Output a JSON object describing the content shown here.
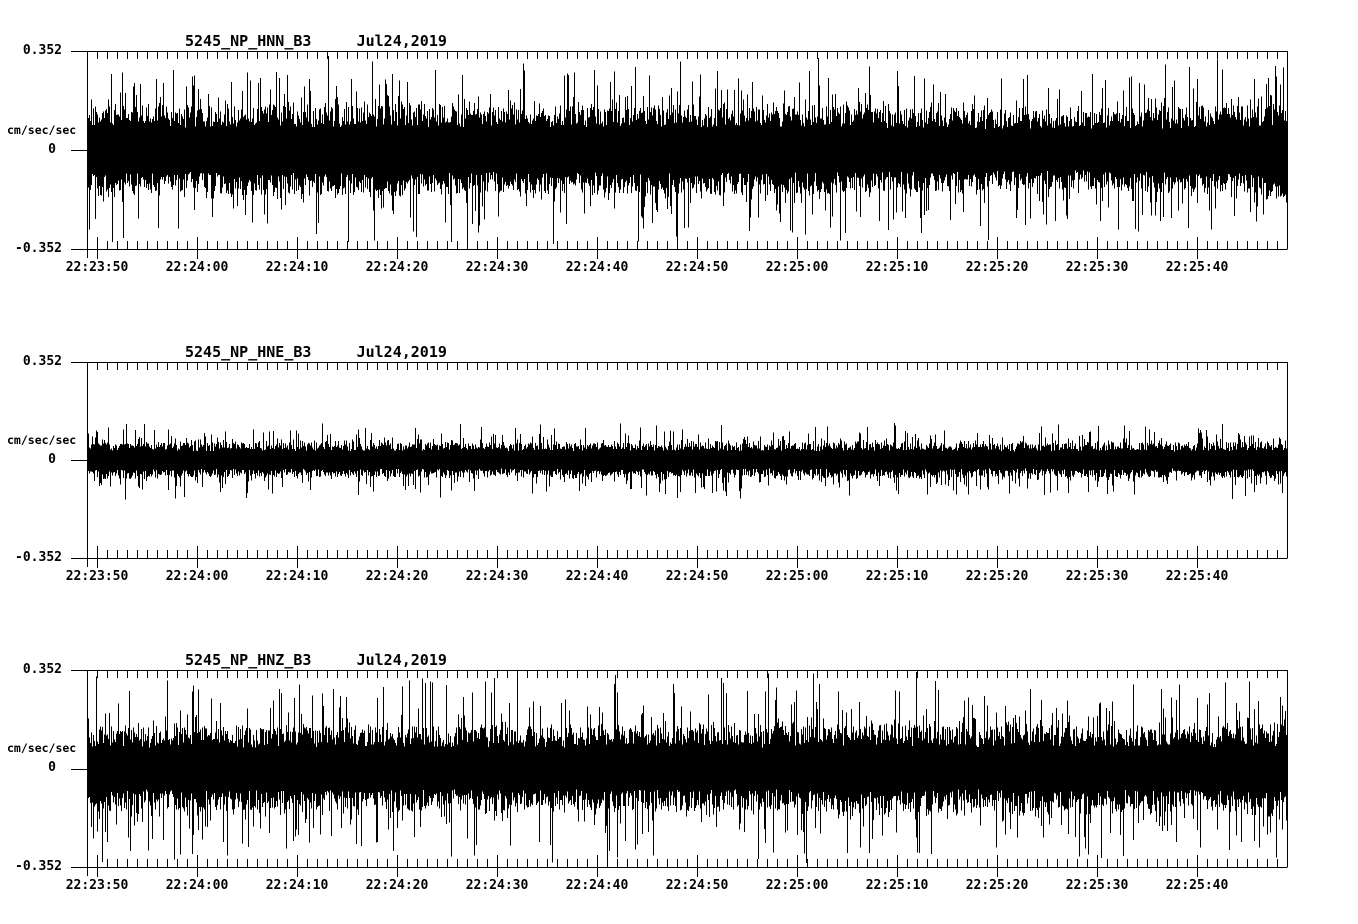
{
  "page": {
    "background": "#ffffff",
    "foreground": "#000000"
  },
  "chart_data": [
    {
      "type": "line",
      "panel": "top",
      "title": "5245_NP_HNN_B3     Jul24,2019",
      "channel": "HNN",
      "date": "Jul24,2019",
      "ylabel": "cm/sec/sec",
      "ylim": [
        -0.352,
        0.352
      ],
      "yticks": [
        {
          "value": 0.352,
          "label": "0.352"
        },
        {
          "value": 0,
          "label": "0"
        },
        {
          "value": -0.352,
          "label": "-0.352"
        }
      ],
      "xticks": [
        "22:23:50",
        "22:24:00",
        "22:24:10",
        "22:24:20",
        "22:24:30",
        "22:24:40",
        "22:24:50",
        "22:25:00",
        "22:25:10",
        "22:25:20",
        "22:25:30",
        "22:25:40"
      ],
      "x_major_step_sec": 10,
      "x_minor_step_sec": 1,
      "time_span_sec": 120,
      "grid": false,
      "line_color": "#000000",
      "signal": {
        "kind": "broadband-noise-min-max",
        "band_amplitude": 0.14,
        "spike_extra": 0.21,
        "max_amplitude": 0.334,
        "envelope": [
          1.0,
          0.95,
          0.92,
          0.97,
          0.93,
          0.96,
          1.0,
          0.94,
          0.9,
          0.96,
          0.92,
          0.95,
          0.98,
          0.92,
          0.96,
          0.9,
          0.93,
          0.88,
          0.85,
          0.84,
          0.88,
          0.92,
          0.95,
          1.0
        ]
      }
    },
    {
      "type": "line",
      "panel": "middle",
      "title": "5245_NP_HNE_B3     Jul24,2019",
      "channel": "HNE",
      "date": "Jul24,2019",
      "ylabel": "cm/sec/sec",
      "ylim": [
        -0.352,
        0.352
      ],
      "yticks": [
        {
          "value": 0.352,
          "label": "0.352"
        },
        {
          "value": 0,
          "label": "0"
        },
        {
          "value": -0.352,
          "label": "-0.352"
        }
      ],
      "xticks": [
        "22:23:50",
        "22:24:00",
        "22:24:10",
        "22:24:20",
        "22:24:30",
        "22:24:40",
        "22:24:50",
        "22:25:00",
        "22:25:10",
        "22:25:20",
        "22:25:30",
        "22:25:40"
      ],
      "x_major_step_sec": 10,
      "x_minor_step_sec": 1,
      "time_span_sec": 120,
      "grid": false,
      "line_color": "#000000",
      "signal": {
        "kind": "broadband-noise-min-max",
        "band_amplitude": 0.057,
        "spike_extra": 0.086,
        "max_amplitude": 0.144,
        "envelope": [
          0.95,
          1.0,
          0.92,
          0.96,
          0.9,
          0.95,
          0.92,
          0.96,
          0.9,
          0.95,
          1.0,
          0.92,
          0.95,
          0.9,
          0.95,
          1.0,
          0.95,
          0.92,
          0.88,
          0.92,
          0.95,
          0.9,
          0.95,
          1.0
        ]
      }
    },
    {
      "type": "line",
      "panel": "bottom",
      "title": "5245_NP_HNZ_B3     Jul24,2019",
      "channel": "HNZ",
      "date": "Jul24,2019",
      "ylabel": "cm/sec/sec",
      "ylim": [
        -0.352,
        0.352
      ],
      "yticks": [
        {
          "value": 0.352,
          "label": "0.352"
        },
        {
          "value": 0,
          "label": "0"
        },
        {
          "value": -0.352,
          "label": "-0.352"
        }
      ],
      "xticks": [
        "22:23:50",
        "22:24:00",
        "22:24:10",
        "22:24:20",
        "22:24:30",
        "22:24:40",
        "22:24:50",
        "22:25:00",
        "22:25:10",
        "22:25:20",
        "22:25:30",
        "22:25:40"
      ],
      "x_major_step_sec": 10,
      "x_minor_step_sec": 1,
      "time_span_sec": 120,
      "grid": false,
      "line_color": "#000000",
      "signal": {
        "kind": "broadband-noise-min-max",
        "band_amplitude": 0.136,
        "spike_extra": 0.223,
        "max_amplitude": 0.345,
        "envelope": [
          0.95,
          0.9,
          0.95,
          0.92,
          0.95,
          0.9,
          0.95,
          0.92,
          0.95,
          0.9,
          0.95,
          0.92,
          0.95,
          0.9,
          0.95,
          1.0,
          0.95,
          0.9,
          1.0,
          0.92,
          0.95,
          0.9,
          0.95,
          1.0
        ]
      }
    }
  ]
}
